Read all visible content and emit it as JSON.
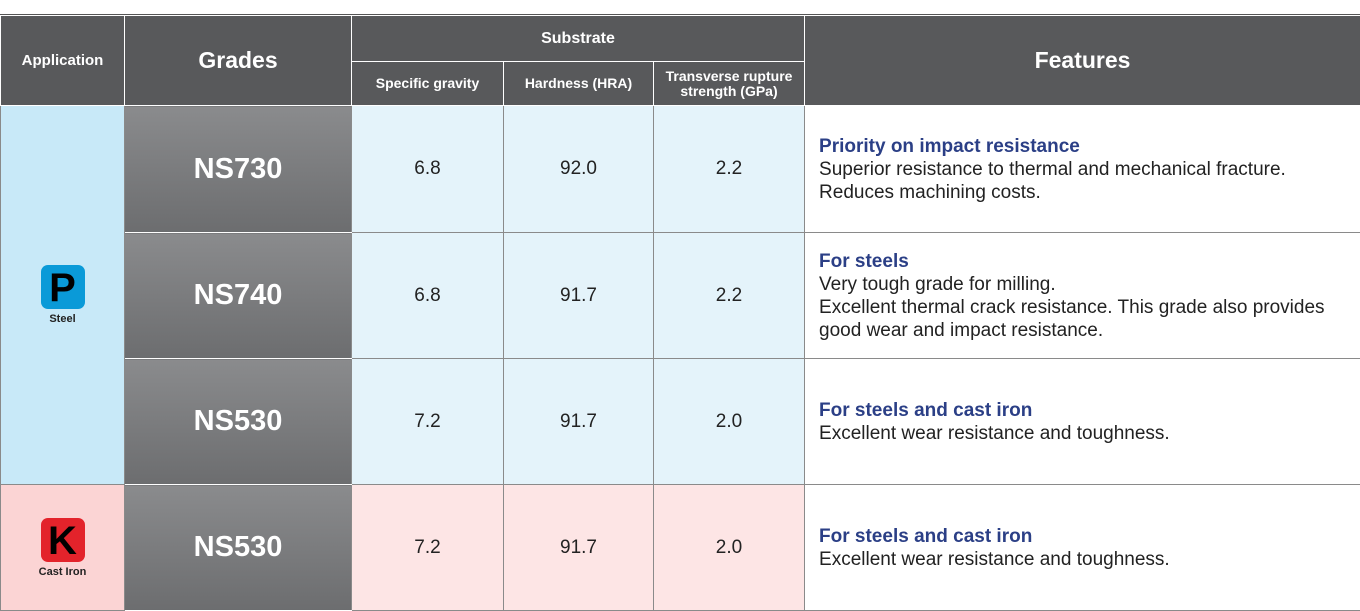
{
  "header": {
    "application": "Application",
    "grades": "Grades",
    "substrate": "Substrate",
    "specific_gravity": "Specific gravity",
    "hardness": "Hardness (HRA)",
    "trs": "Transverse rupture strength (GPa)",
    "features": "Features"
  },
  "groups": [
    {
      "code": "P",
      "name": "Steel",
      "rows": [
        {
          "grade": "NS730",
          "gravity": "6.8",
          "hardness": "92.0",
          "trs": "2.2",
          "feature_title": "Priority on impact resistance",
          "feature_lines": [
            "Superior resistance to thermal and mechanical fracture. Reduces machining costs."
          ]
        },
        {
          "grade": "NS740",
          "gravity": "6.8",
          "hardness": "91.7",
          "trs": "2.2",
          "feature_title": "For steels",
          "feature_lines": [
            "Very tough grade for milling.",
            "Excellent thermal crack resistance. This grade also provides good wear and impact resistance."
          ]
        },
        {
          "grade": "NS530",
          "gravity": "7.2",
          "hardness": "91.7",
          "trs": "2.0",
          "feature_title": "For steels and cast iron",
          "feature_lines": [
            "Excellent wear resistance and toughness."
          ]
        }
      ]
    },
    {
      "code": "K",
      "name": "Cast Iron",
      "rows": [
        {
          "grade": "NS530",
          "gravity": "7.2",
          "hardness": "91.7",
          "trs": "2.0",
          "feature_title": "For steels and cast iron",
          "feature_lines": [
            "Excellent wear resistance and toughness."
          ]
        }
      ]
    }
  ]
}
